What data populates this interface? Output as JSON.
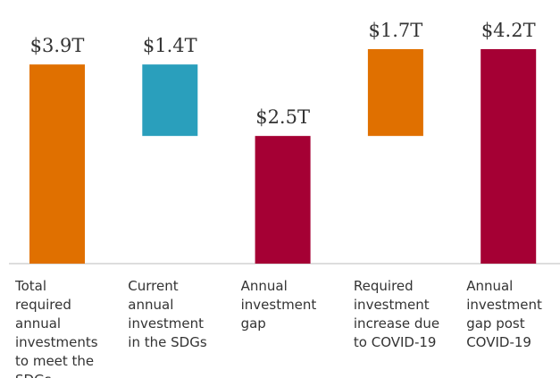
{
  "chart_data": {
    "type": "waterfall",
    "categories": [
      "Total required annual investments to meet the SDGs",
      "Current annual investment in the SDGs",
      "Annual investment gap",
      "Required investment increase due to COVID-19",
      "Annual investment gap post COVID-19"
    ],
    "values": [
      3.9,
      1.4,
      2.5,
      1.7,
      4.2
    ],
    "value_labels": [
      "$3.9T",
      "$1.4T",
      "$2.5T",
      "$1.7T",
      "$4.2T"
    ],
    "measure": [
      "absolute",
      "decrease",
      "absolute",
      "increase",
      "absolute"
    ],
    "colors": [
      "#e07000",
      "#2a9fbc",
      "#a50034",
      "#e07000",
      "#a50034"
    ]
  }
}
